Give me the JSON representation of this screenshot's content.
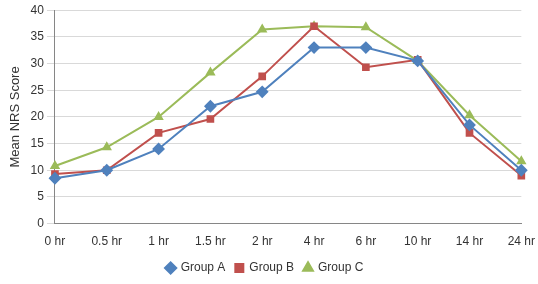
{
  "chart_data": {
    "type": "line",
    "y_label": "Mean NRS Score",
    "categories": [
      "0 hr",
      "0.5 hr",
      "1 hr",
      "1.5 hr",
      "2 hr",
      "4 hr",
      "6 hr",
      "10 hr",
      "14 hr",
      "24 hr"
    ],
    "series": [
      {
        "name": "Group A",
        "color": "#4f81bd",
        "marker": "diamond",
        "values": [
          8.5,
          10,
          14,
          22,
          24.7,
          33,
          33,
          30.5,
          18.5,
          10
        ]
      },
      {
        "name": "Group B",
        "color": "#c0504d",
        "marker": "square",
        "values": [
          9.3,
          10,
          17,
          19.6,
          27.6,
          37,
          29.3,
          30.7,
          17,
          9
        ]
      },
      {
        "name": "Group C",
        "color": "#9bbb59",
        "marker": "triangle",
        "values": [
          10.8,
          14.3,
          20,
          28.3,
          36.4,
          37,
          36.8,
          30.5,
          20.3,
          11.7
        ]
      }
    ],
    "ylim": [
      0,
      40
    ],
    "yticks": [
      0,
      5,
      10,
      15,
      20,
      25,
      30,
      35,
      40
    ],
    "grid": true,
    "legend": "bottom"
  }
}
